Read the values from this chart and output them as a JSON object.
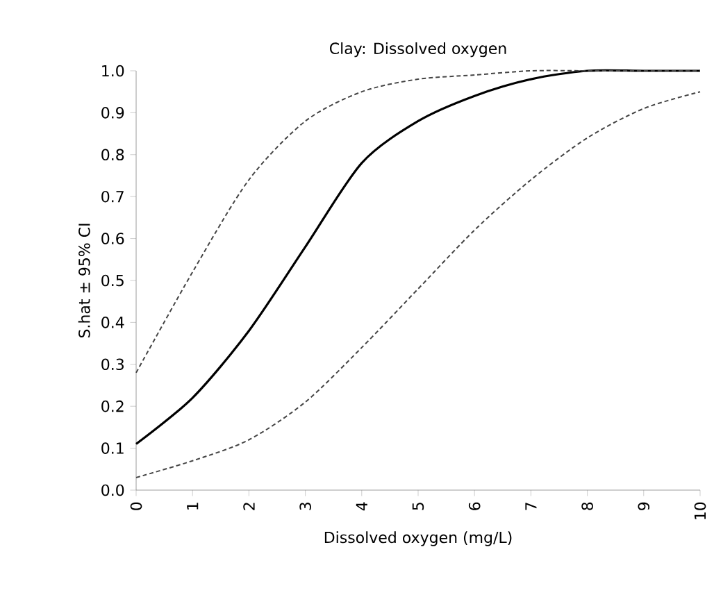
{
  "chart_data": {
    "type": "line",
    "title": "Clay: Dissolved oxygen",
    "xlabel": "Dissolved oxygen (mg/L)",
    "ylabel": "S.hat ± 95% CI",
    "x": [
      0,
      1,
      2,
      3,
      4,
      5,
      6,
      7,
      8,
      9,
      10
    ],
    "series": [
      {
        "color": "#000000",
        "line_style": "solid",
        "values": [
          0.11,
          0.22,
          0.38,
          0.58,
          0.78,
          0.88,
          0.94,
          0.98,
          1.0,
          1.0,
          1.0
        ]
      },
      {
        "color": "#444444",
        "line_style": "dashed",
        "values": [
          0.28,
          0.52,
          0.74,
          0.88,
          0.95,
          0.98,
          0.99,
          1.0,
          1.0,
          1.0,
          1.0
        ]
      },
      {
        "color": "#444444",
        "line_style": "dashed",
        "values": [
          0.03,
          0.07,
          0.12,
          0.21,
          0.34,
          0.48,
          0.62,
          0.74,
          0.84,
          0.91,
          0.95
        ]
      }
    ],
    "xlim": [
      0,
      10
    ],
    "xticks": [
      0,
      1,
      2,
      3,
      4,
      5,
      6,
      7,
      8,
      9,
      10
    ],
    "ylim": [
      0,
      1
    ],
    "yticks": [
      {
        "value": 0,
        "label": "0.0"
      },
      {
        "value": 0.1,
        "label": "0.1"
      },
      {
        "value": 0.2,
        "label": "0.2"
      },
      {
        "value": 0.3,
        "label": "0.3"
      },
      {
        "value": 0.4,
        "label": "0.4"
      },
      {
        "value": 0.5,
        "label": "0.5"
      },
      {
        "value": 0.6,
        "label": "0.6"
      },
      {
        "value": 0.7,
        "label": "0.7"
      },
      {
        "value": 0.8,
        "label": "0.8"
      },
      {
        "value": 0.9,
        "label": "0.9"
      },
      {
        "value": 1,
        "label": "1.0"
      }
    ],
    "grid": false,
    "marker": "none"
  }
}
